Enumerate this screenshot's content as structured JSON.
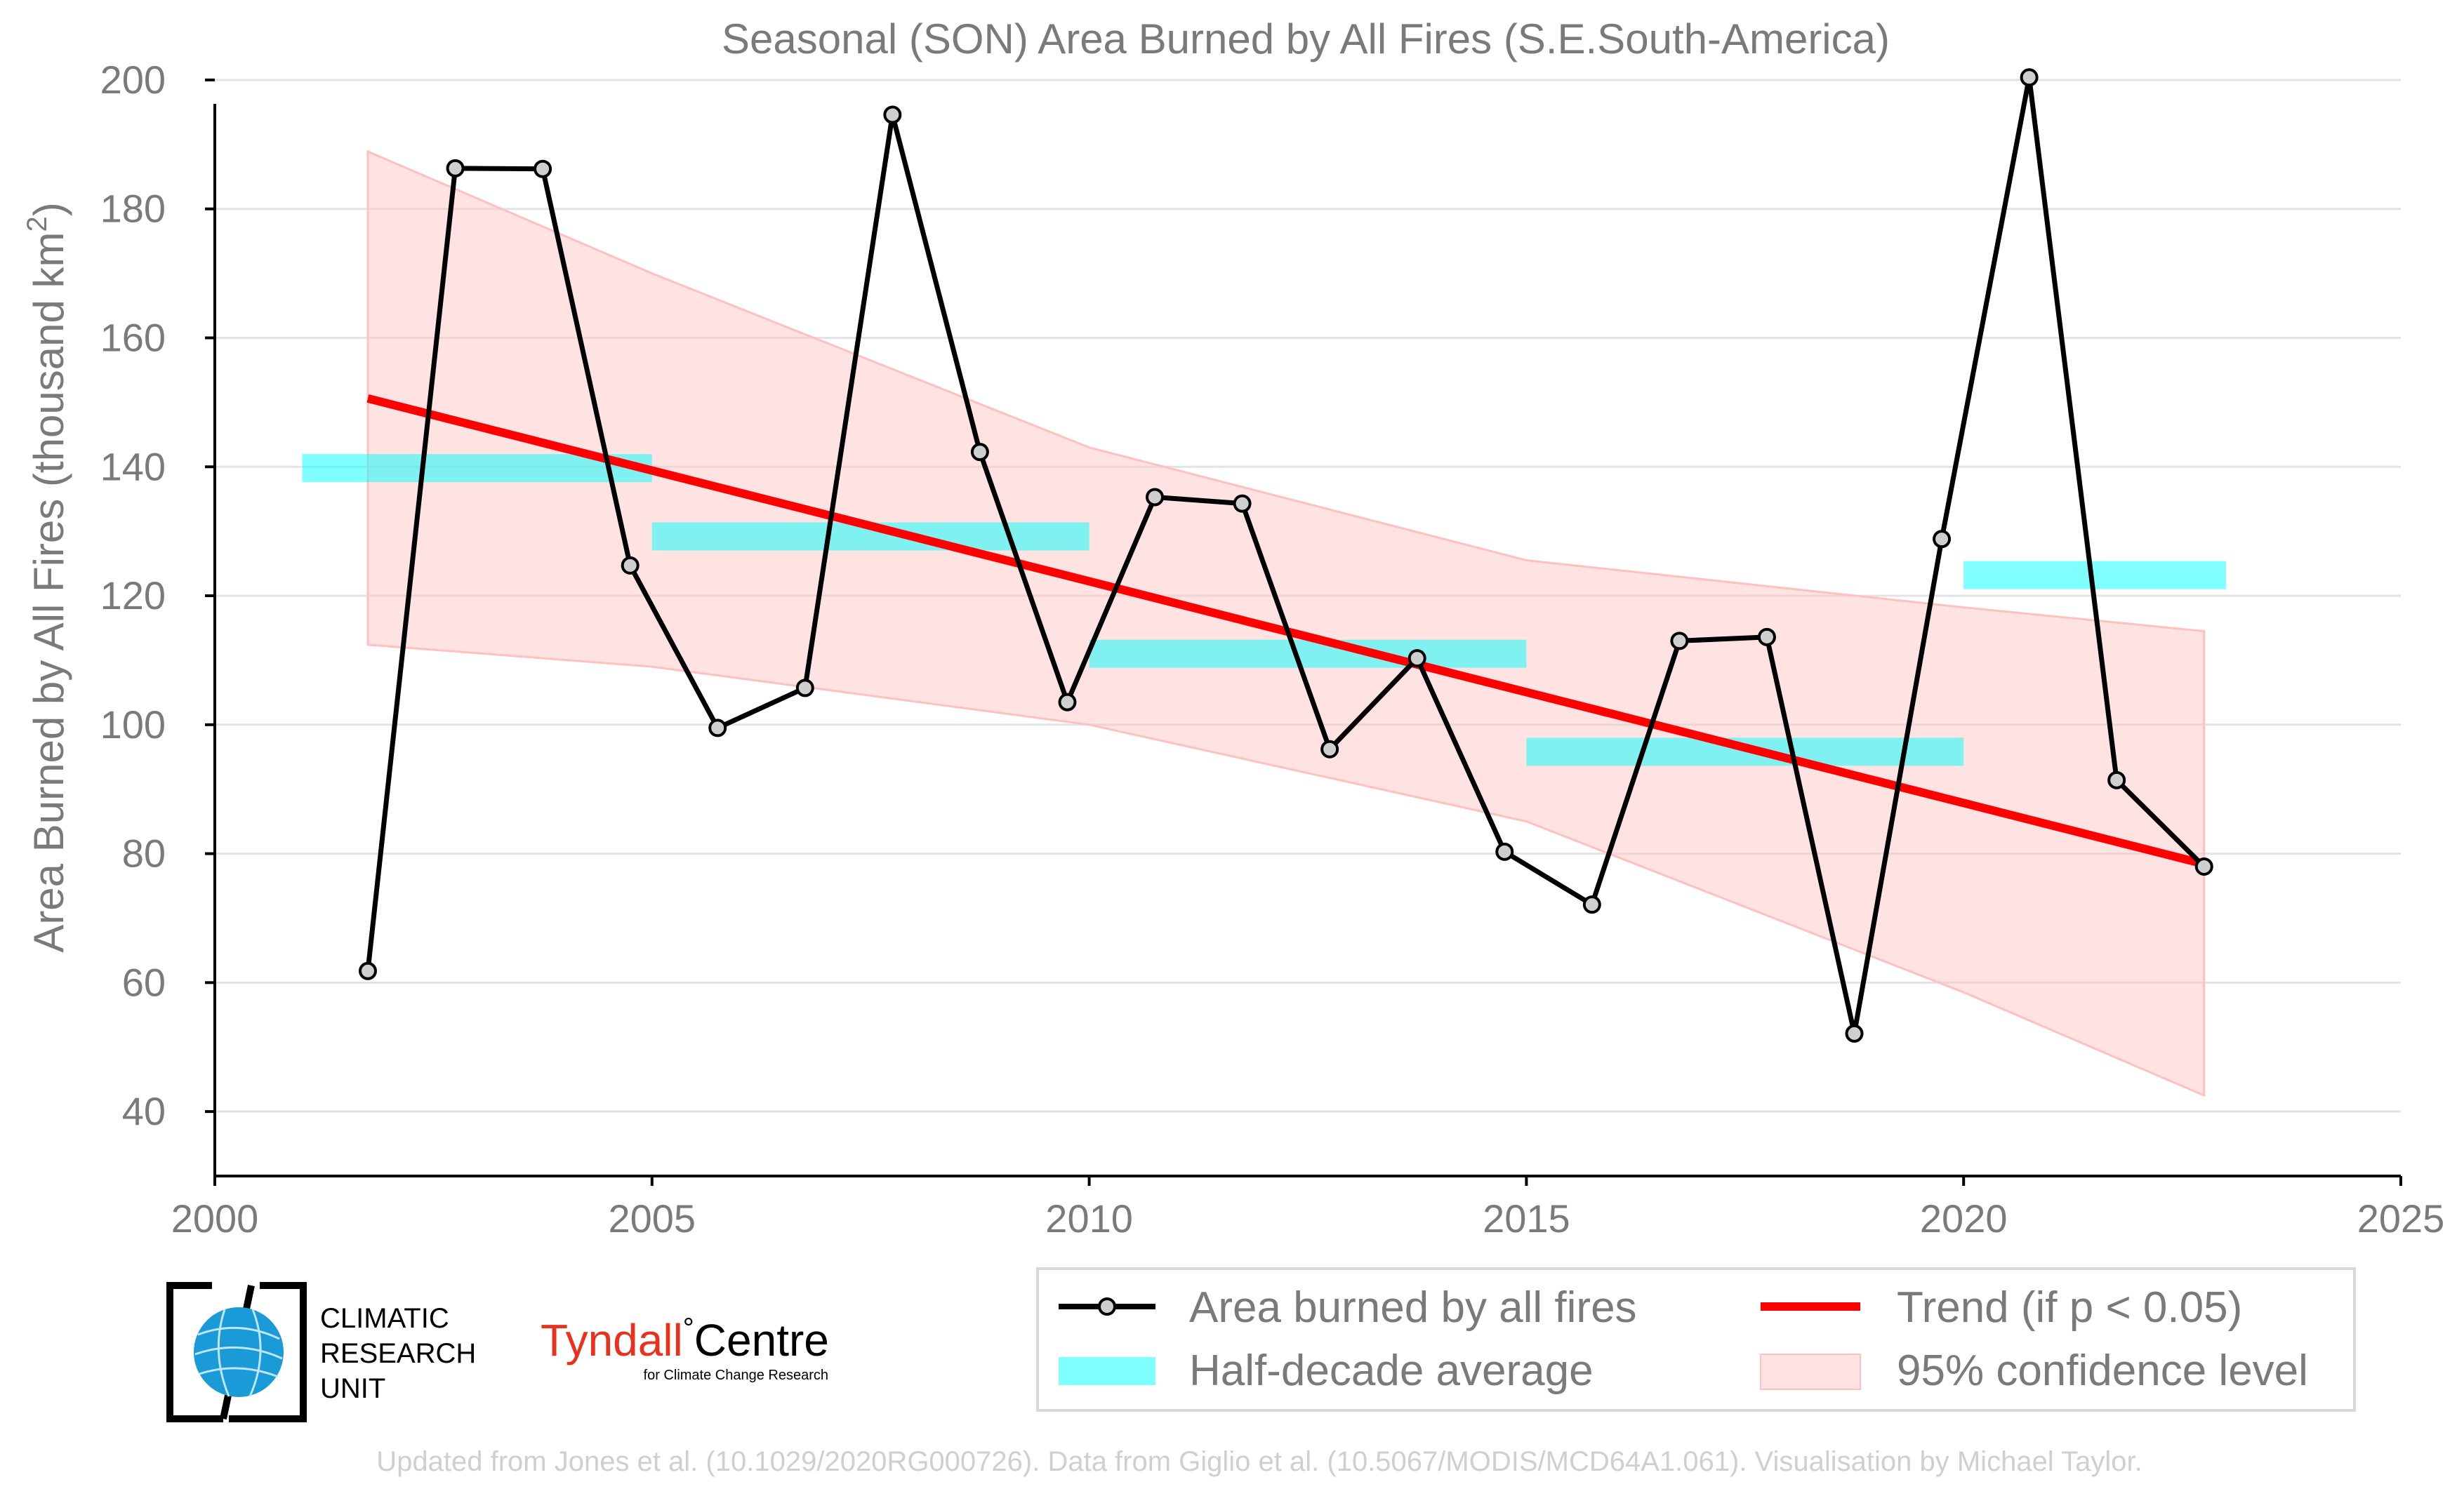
{
  "chart_data": {
    "type": "line",
    "title": "Seasonal (SON) Area Burned by All Fires (S.E.South-America)",
    "ylabel_main": "Area Burned by All Fires (thousand km",
    "ylabel_sup": "2",
    "ylabel_close": ")",
    "xlabel": "",
    "xlim": [
      2000,
      2025
    ],
    "ylim": [
      30,
      205
    ],
    "xticks": [
      2000,
      2005,
      2010,
      2015,
      2020,
      2025
    ],
    "yticks": [
      40,
      60,
      80,
      100,
      120,
      140,
      160,
      180,
      200
    ],
    "grid": "horizontal",
    "series": [
      {
        "name": "Area burned by all fires",
        "color": "#000000",
        "x": [
          2001.75,
          2002.75,
          2003.75,
          2004.75,
          2005.75,
          2006.75,
          2007.75,
          2008.75,
          2009.75,
          2010.75,
          2011.75,
          2012.75,
          2013.75,
          2014.75,
          2015.75,
          2016.75,
          2017.75,
          2018.75,
          2019.75,
          2020.75,
          2021.75,
          2022.75
        ],
        "y": [
          61.8,
          186.3,
          186.2,
          124.7,
          99.5,
          105.7,
          194.6,
          142.3,
          103.5,
          135.3,
          134.3,
          96.2,
          110.3,
          80.3,
          72.1,
          113.0,
          113.6,
          52.1,
          128.8,
          200.4,
          91.4,
          78.0
        ]
      }
    ],
    "half_decade_average": {
      "name": "Half-decade average",
      "color": "#00ffff",
      "segments": [
        {
          "x0": 2001.0,
          "x1": 2005.0,
          "y": 139.8
        },
        {
          "x0": 2005.0,
          "x1": 2010.0,
          "y": 129.2
        },
        {
          "x0": 2010.0,
          "x1": 2015.0,
          "y": 111.0
        },
        {
          "x0": 2015.0,
          "x1": 2020.0,
          "y": 95.8
        },
        {
          "x0": 2020.0,
          "x1": 2023.0,
          "y": 123.2
        }
      ]
    },
    "trend": {
      "name": "Trend (if p < 0.05)",
      "color": "#ff0000",
      "x": [
        2001.75,
        2022.75
      ],
      "y": [
        150.6,
        78.4
      ]
    },
    "confidence": {
      "name": "95% confidence level",
      "color": "#ffc0c0",
      "x": [
        2001.75,
        2005,
        2010,
        2015,
        2020,
        2022.75
      ],
      "upper": [
        188.9,
        170.0,
        143.0,
        125.5,
        118.2,
        114.5
      ],
      "lower": [
        112.4,
        109.0,
        100.0,
        85.0,
        58.5,
        42.5
      ]
    },
    "legend_position": "bottom-right"
  },
  "legend": {
    "items": [
      {
        "label": "Area burned by all fires"
      },
      {
        "label": "Half-decade average"
      },
      {
        "label": "Trend (if p < 0.05)"
      },
      {
        "label": "95% confidence level"
      }
    ]
  },
  "logos": {
    "cru_line1": "CLIMATIC",
    "cru_line2": "RESEARCH",
    "cru_line3": "UNIT",
    "tyndall_name": "Tyndall",
    "tyndall_degree": "°",
    "tyndall_centre": "Centre",
    "tyndall_sub": "for Climate Change Research"
  },
  "footer": {
    "credit": "Updated from Jones et al. (10.1029/2020RG000726). Data from Giglio et al. (10.5067/MODIS/MCD64A1.061). Visualisation by Michael Taylor."
  },
  "colors": {
    "axis": "#000000",
    "grid": "#e3e3e3",
    "text": "#7a7a7a",
    "footer": "#cfcfcf",
    "marker_fill": "#cfcfcf",
    "tyndall_red": "#e8321e",
    "cru_blue": "#1a9ad6"
  }
}
